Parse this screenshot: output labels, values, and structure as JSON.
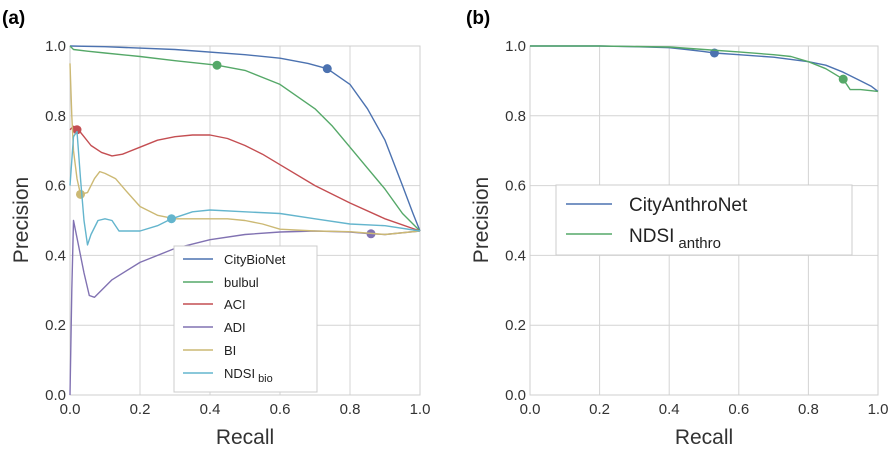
{
  "colors": {
    "blue": "#4c72b0",
    "green": "#55a868",
    "red": "#c44e52",
    "purple": "#8172b2",
    "yellow": "#ccb974",
    "cyan": "#64b5cd"
  },
  "chart_data": [
    {
      "panel": "(a)",
      "type": "line",
      "xlabel": "Recall",
      "ylabel": "Precision",
      "xlim": [
        0,
        1
      ],
      "ylim": [
        0,
        1
      ],
      "xticks": [
        "0.0",
        "0.2",
        "0.4",
        "0.6",
        "0.8",
        "1.0"
      ],
      "yticks": [
        "0.0",
        "0.2",
        "0.4",
        "0.6",
        "0.8",
        "1.0"
      ],
      "grid": true,
      "legend_position": "lower-center",
      "series": [
        {
          "name": "CityBioNet",
          "color": "#4c72b0",
          "points": [
            [
              0,
              1.0
            ],
            [
              0.1,
              0.998
            ],
            [
              0.3,
              0.99
            ],
            [
              0.5,
              0.975
            ],
            [
              0.6,
              0.965
            ],
            [
              0.68,
              0.95
            ],
            [
              0.735,
              0.935
            ],
            [
              0.8,
              0.89
            ],
            [
              0.85,
              0.82
            ],
            [
              0.9,
              0.73
            ],
            [
              0.95,
              0.6
            ],
            [
              0.98,
              0.52
            ],
            [
              1.0,
              0.47
            ]
          ],
          "marker": [
            0.735,
            0.935
          ]
        },
        {
          "name": "bulbul",
          "color": "#55a868",
          "points": [
            [
              0,
              1.0
            ],
            [
              0.01,
              0.99
            ],
            [
              0.05,
              0.985
            ],
            [
              0.1,
              0.98
            ],
            [
              0.2,
              0.97
            ],
            [
              0.3,
              0.958
            ],
            [
              0.42,
              0.945
            ],
            [
              0.5,
              0.93
            ],
            [
              0.6,
              0.89
            ],
            [
              0.7,
              0.82
            ],
            [
              0.75,
              0.77
            ],
            [
              0.8,
              0.71
            ],
            [
              0.85,
              0.65
            ],
            [
              0.9,
              0.59
            ],
            [
              0.95,
              0.52
            ],
            [
              1.0,
              0.47
            ]
          ],
          "marker": [
            0.42,
            0.945
          ]
        },
        {
          "name": "ACI",
          "color": "#c44e52",
          "points": [
            [
              0.0,
              0.76
            ],
            [
              0.01,
              0.77
            ],
            [
              0.02,
              0.765
            ],
            [
              0.04,
              0.74
            ],
            [
              0.06,
              0.715
            ],
            [
              0.09,
              0.695
            ],
            [
              0.12,
              0.685
            ],
            [
              0.15,
              0.69
            ],
            [
              0.2,
              0.71
            ],
            [
              0.25,
              0.73
            ],
            [
              0.3,
              0.74
            ],
            [
              0.35,
              0.745
            ],
            [
              0.4,
              0.745
            ],
            [
              0.45,
              0.735
            ],
            [
              0.5,
              0.715
            ],
            [
              0.55,
              0.69
            ],
            [
              0.6,
              0.66
            ],
            [
              0.7,
              0.6
            ],
            [
              0.8,
              0.55
            ],
            [
              0.9,
              0.505
            ],
            [
              1.0,
              0.47
            ]
          ],
          "marker": [
            0.02,
            0.76
          ]
        },
        {
          "name": "ADI",
          "color": "#8172b2",
          "points": [
            [
              0.0,
              0.0
            ],
            [
              0.005,
              0.3
            ],
            [
              0.01,
              0.5
            ],
            [
              0.02,
              0.45
            ],
            [
              0.04,
              0.35
            ],
            [
              0.055,
              0.285
            ],
            [
              0.07,
              0.28
            ],
            [
              0.09,
              0.3
            ],
            [
              0.12,
              0.33
            ],
            [
              0.2,
              0.38
            ],
            [
              0.3,
              0.42
            ],
            [
              0.4,
              0.445
            ],
            [
              0.5,
              0.46
            ],
            [
              0.6,
              0.467
            ],
            [
              0.7,
              0.47
            ],
            [
              0.8,
              0.467
            ],
            [
              0.86,
              0.462
            ],
            [
              0.9,
              0.46
            ],
            [
              1.0,
              0.47
            ]
          ],
          "marker": [
            0.86,
            0.462
          ]
        },
        {
          "name": "BI",
          "color": "#ccb974",
          "points": [
            [
              0.0,
              0.95
            ],
            [
              0.005,
              0.8
            ],
            [
              0.01,
              0.7
            ],
            [
              0.02,
              0.62
            ],
            [
              0.03,
              0.575
            ],
            [
              0.05,
              0.58
            ],
            [
              0.07,
              0.62
            ],
            [
              0.085,
              0.64
            ],
            [
              0.1,
              0.635
            ],
            [
              0.13,
              0.62
            ],
            [
              0.16,
              0.585
            ],
            [
              0.2,
              0.54
            ],
            [
              0.25,
              0.515
            ],
            [
              0.3,
              0.505
            ],
            [
              0.35,
              0.505
            ],
            [
              0.4,
              0.505
            ],
            [
              0.45,
              0.505
            ],
            [
              0.5,
              0.5
            ],
            [
              0.55,
              0.49
            ],
            [
              0.6,
              0.475
            ],
            [
              0.7,
              0.47
            ],
            [
              0.8,
              0.468
            ],
            [
              0.9,
              0.46
            ],
            [
              1.0,
              0.47
            ]
          ],
          "marker": [
            0.03,
            0.575
          ]
        },
        {
          "name": "NDSI",
          "name_sub": "bio",
          "color": "#64b5cd",
          "points": [
            [
              0.0,
              0.6
            ],
            [
              0.01,
              0.74
            ],
            [
              0.02,
              0.755
            ],
            [
              0.03,
              0.62
            ],
            [
              0.04,
              0.5
            ],
            [
              0.05,
              0.43
            ],
            [
              0.06,
              0.46
            ],
            [
              0.08,
              0.5
            ],
            [
              0.1,
              0.505
            ],
            [
              0.12,
              0.5
            ],
            [
              0.14,
              0.47
            ],
            [
              0.16,
              0.47
            ],
            [
              0.2,
              0.47
            ],
            [
              0.25,
              0.485
            ],
            [
              0.29,
              0.505
            ],
            [
              0.35,
              0.525
            ],
            [
              0.4,
              0.53
            ],
            [
              0.5,
              0.525
            ],
            [
              0.6,
              0.52
            ],
            [
              0.7,
              0.505
            ],
            [
              0.8,
              0.49
            ],
            [
              0.9,
              0.485
            ],
            [
              1.0,
              0.47
            ]
          ],
          "marker": [
            0.29,
            0.505
          ]
        }
      ]
    },
    {
      "panel": "(b)",
      "type": "line",
      "xlabel": "Recall",
      "ylabel": "Precision",
      "xlim": [
        0,
        1
      ],
      "ylim": [
        0,
        1
      ],
      "xticks": [
        "0.0",
        "0.2",
        "0.4",
        "0.6",
        "0.8",
        "1.0"
      ],
      "yticks": [
        "0.0",
        "0.2",
        "0.4",
        "0.6",
        "0.8",
        "1.0"
      ],
      "grid": true,
      "legend_position": "center-left",
      "series": [
        {
          "name": "CityAnthroNet",
          "color": "#4c72b0",
          "points": [
            [
              0,
              1.0
            ],
            [
              0.2,
              1.0
            ],
            [
              0.3,
              0.998
            ],
            [
              0.4,
              0.995
            ],
            [
              0.45,
              0.99
            ],
            [
              0.5,
              0.984
            ],
            [
              0.53,
              0.98
            ],
            [
              0.6,
              0.975
            ],
            [
              0.7,
              0.968
            ],
            [
              0.8,
              0.955
            ],
            [
              0.85,
              0.945
            ],
            [
              0.9,
              0.925
            ],
            [
              0.95,
              0.9
            ],
            [
              0.98,
              0.885
            ],
            [
              1.0,
              0.87
            ]
          ],
          "marker": [
            0.53,
            0.98
          ]
        },
        {
          "name": "NDSI",
          "name_sub": "anthro",
          "color": "#55a868",
          "points": [
            [
              0,
              1.0
            ],
            [
              0.2,
              1.0
            ],
            [
              0.4,
              0.997
            ],
            [
              0.5,
              0.99
            ],
            [
              0.6,
              0.983
            ],
            [
              0.7,
              0.975
            ],
            [
              0.75,
              0.97
            ],
            [
              0.8,
              0.955
            ],
            [
              0.85,
              0.935
            ],
            [
              0.9,
              0.905
            ],
            [
              0.92,
              0.875
            ],
            [
              0.95,
              0.875
            ],
            [
              1.0,
              0.87
            ]
          ],
          "marker": [
            0.9,
            0.905
          ]
        }
      ]
    }
  ]
}
